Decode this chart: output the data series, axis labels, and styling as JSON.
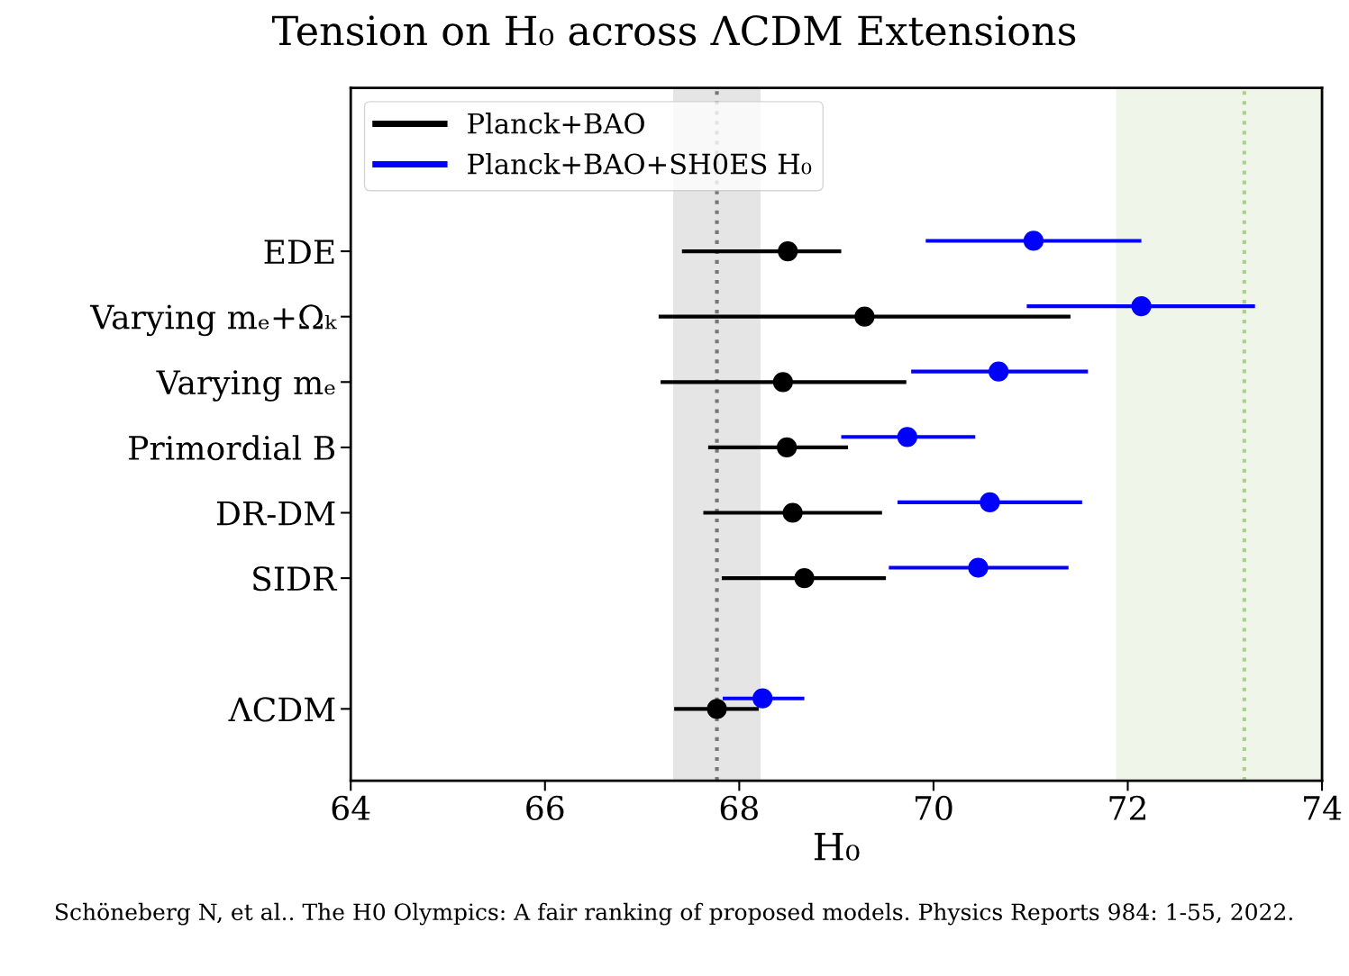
{
  "chart_data": {
    "type": "scatter",
    "orientation": "horizontal",
    "title": "Tension on H₀ across ΛCDM Extensions",
    "xlabel": "H₀",
    "categories": [
      "EDE",
      "Varying mₑ+Ωₖ",
      "Varying mₑ",
      "Primordial B",
      "DR-DM",
      "SIDR",
      null,
      "ΛCDM"
    ],
    "series": [
      {
        "name": "Planck+BAO",
        "color": "#000000",
        "values": [
          68.5,
          69.29,
          68.45,
          68.49,
          68.55,
          68.67,
          null,
          67.77
        ],
        "errors": [
          [
            67.41,
            69.05
          ],
          [
            67.17,
            71.41
          ],
          [
            67.19,
            69.72
          ],
          [
            67.68,
            69.12
          ],
          [
            67.63,
            69.47
          ],
          [
            67.82,
            69.51
          ],
          null,
          [
            67.33,
            68.2
          ]
        ]
      },
      {
        "name": "Planck+BAO+SH0ES H₀",
        "color": "#0000ff",
        "values": [
          71.03,
          72.14,
          70.67,
          69.73,
          70.58,
          70.46,
          null,
          68.24
        ],
        "errors": [
          [
            69.92,
            72.14
          ],
          [
            70.96,
            73.31
          ],
          [
            69.77,
            71.59
          ],
          [
            69.05,
            70.43
          ],
          [
            69.63,
            71.53
          ],
          [
            69.54,
            71.39
          ],
          null,
          [
            67.83,
            68.67
          ]
        ]
      }
    ],
    "xlim": [
      64,
      74
    ],
    "xticks": [
      64,
      66,
      68,
      70,
      72,
      74
    ],
    "bands": [
      {
        "axis": "x",
        "from": 67.32,
        "to": 68.22,
        "color": "#e5e5e5"
      },
      {
        "axis": "x",
        "from": 71.88,
        "to": 74,
        "color": "#eff5e9"
      }
    ],
    "ref_lines": [
      {
        "axis": "x",
        "value": 67.77,
        "color": "#777777",
        "line_style": "dotted"
      },
      {
        "axis": "x",
        "value": 73.2,
        "color": "#a9d18e",
        "line_style": "dotted"
      }
    ],
    "legend": "top left",
    "marker": "circle",
    "grid": false,
    "annotations": [
      "Schöneberg N, et al.. The H0 Olympics: A fair ranking of proposed models. Physics Reports 984: 1-55, 2022."
    ]
  }
}
